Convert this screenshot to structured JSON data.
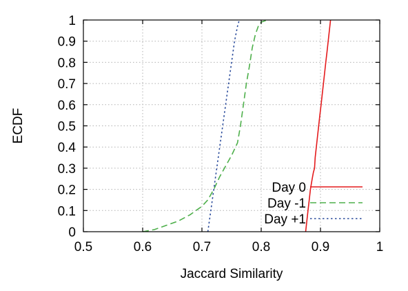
{
  "chart_data": {
    "type": "line",
    "title": "",
    "xlabel": "Jaccard Similarity",
    "ylabel": "ECDF",
    "xlim": [
      0.5,
      1
    ],
    "ylim": [
      0,
      1
    ],
    "xticks": [
      0.5,
      0.6,
      0.7,
      0.8,
      0.9,
      1
    ],
    "xtick_labels": [
      "0.5",
      "0.6",
      "0.7",
      "0.8",
      "0.9",
      "1"
    ],
    "yticks": [
      0,
      0.1,
      0.2,
      0.3,
      0.4,
      0.5,
      0.6,
      0.7,
      0.8,
      0.9,
      1
    ],
    "ytick_labels": [
      "0",
      "0.1",
      "0.2",
      "0.3",
      "0.4",
      "0.5",
      "0.6",
      "0.7",
      "0.8",
      "0.9",
      "1"
    ],
    "grid": true,
    "legend_position": "bottom-right",
    "series": [
      {
        "name": "Day 0",
        "color": "#e41a1c",
        "style": "solid",
        "x": [
          0.875,
          0.877,
          0.879,
          0.881,
          0.883,
          0.886,
          0.888,
          0.89,
          0.891,
          0.893,
          0.895,
          0.897,
          0.899,
          0.901,
          0.903,
          0.905,
          0.907,
          0.909,
          0.911,
          0.913,
          0.915,
          0.917
        ],
        "y": [
          0,
          0.05,
          0.1,
          0.15,
          0.2,
          0.25,
          0.28,
          0.3,
          0.35,
          0.4,
          0.45,
          0.5,
          0.55,
          0.6,
          0.65,
          0.7,
          0.75,
          0.8,
          0.85,
          0.9,
          0.95,
          1
        ]
      },
      {
        "name": "Day -1",
        "color": "#4daf4a",
        "style": "dashed",
        "x": [
          0.6,
          0.62,
          0.64,
          0.66,
          0.68,
          0.7,
          0.71,
          0.72,
          0.73,
          0.74,
          0.75,
          0.76,
          0.765,
          0.77,
          0.775,
          0.78,
          0.785,
          0.79,
          0.795,
          0.8,
          0.81
        ],
        "y": [
          0,
          0.01,
          0.03,
          0.05,
          0.08,
          0.12,
          0.15,
          0.2,
          0.26,
          0.31,
          0.36,
          0.42,
          0.5,
          0.6,
          0.7,
          0.78,
          0.87,
          0.93,
          0.97,
          0.99,
          1
        ]
      },
      {
        "name": "Day +1",
        "color": "#2b4c9c",
        "style": "dotted",
        "x": [
          0.71,
          0.715,
          0.72,
          0.725,
          0.73,
          0.735,
          0.74,
          0.745,
          0.75,
          0.755,
          0.76,
          0.763
        ],
        "y": [
          0,
          0.1,
          0.2,
          0.3,
          0.4,
          0.5,
          0.6,
          0.7,
          0.8,
          0.9,
          0.97,
          1
        ]
      }
    ]
  }
}
